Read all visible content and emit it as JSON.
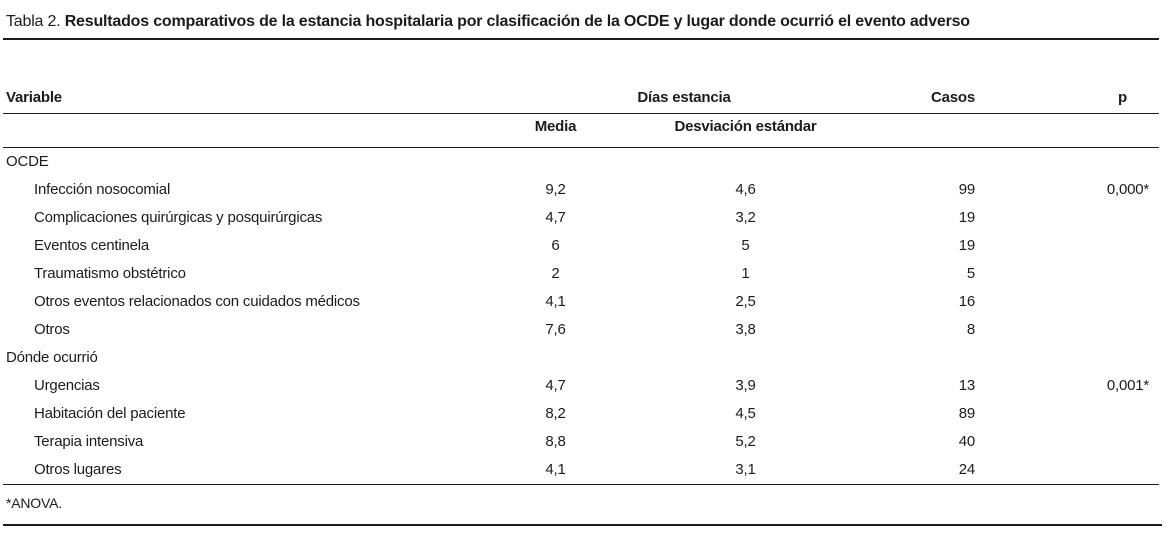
{
  "table": {
    "title_prefix": "Tabla 2.",
    "title": "Resultados comparativos de la estancia hospitalaria por clasificación de la OCDE y lugar donde ocurrió el evento adverso",
    "headers": {
      "variable": "Variable",
      "dias_estancia": "Días estancia",
      "media": "Media",
      "desviacion_estandar": "Desviación estándar",
      "casos": "Casos",
      "p": "p"
    },
    "groups": [
      {
        "label": "OCDE",
        "rows": [
          {
            "variable": "Infección nosocomial",
            "media": "9,2",
            "sd": "4,6",
            "casos": "99",
            "p": "0,000*"
          },
          {
            "variable": "Complicaciones quirúrgicas y posquirúrgicas",
            "media": "4,7",
            "sd": "3,2",
            "casos": "19",
            "p": ""
          },
          {
            "variable": "Eventos centinela",
            "media": "6",
            "sd": "5",
            "casos": "19",
            "p": ""
          },
          {
            "variable": "Traumatismo obstétrico",
            "media": "2",
            "sd": "1",
            "casos": "5",
            "p": ""
          },
          {
            "variable": "Otros eventos relacionados con cuidados médicos",
            "media": "4,1",
            "sd": "2,5",
            "casos": "16",
            "p": ""
          },
          {
            "variable": "Otros",
            "media": "7,6",
            "sd": "3,8",
            "casos": "8",
            "p": ""
          }
        ]
      },
      {
        "label": "Dónde ocurrió",
        "rows": [
          {
            "variable": "Urgencias",
            "media": "4,7",
            "sd": "3,9",
            "casos": "13",
            "p": "0,001*"
          },
          {
            "variable": "Habitación del paciente",
            "media": "8,2",
            "sd": "4,5",
            "casos": "89",
            "p": ""
          },
          {
            "variable": "Terapia intensiva",
            "media": "8,8",
            "sd": "5,2",
            "casos": "40",
            "p": ""
          },
          {
            "variable": "Otros lugares",
            "media": "4,1",
            "sd": "3,1",
            "casos": "24",
            "p": ""
          }
        ]
      }
    ],
    "footnote": "*ANOVA."
  }
}
